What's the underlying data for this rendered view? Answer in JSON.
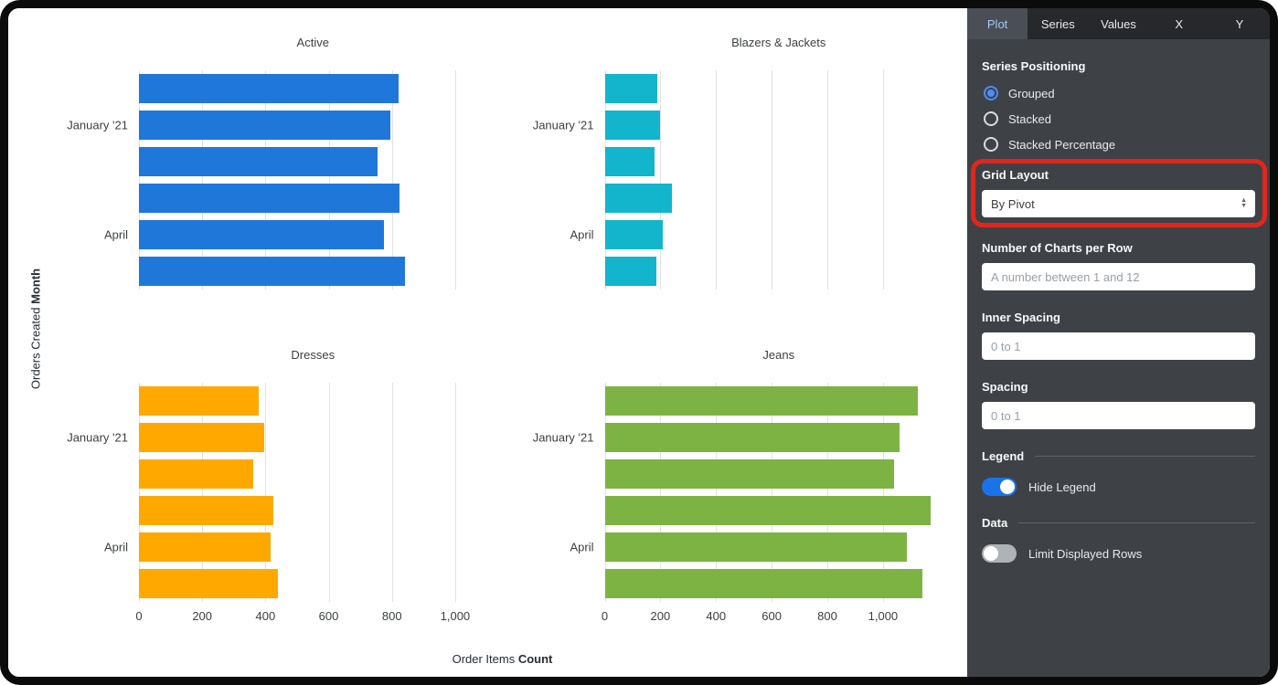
{
  "chart_data": {
    "type": "bar",
    "orientation": "horizontal",
    "grid": true,
    "legend_position": "hidden",
    "xlabel": "Order Items Count",
    "ylabel": "Orders Created Month",
    "xlabel_parts": {
      "normal": "Order Items ",
      "bold": "Count"
    },
    "ylabel_parts": {
      "normal": "Orders Created ",
      "bold": "Month"
    },
    "x_ticks": [
      0,
      200,
      400,
      600,
      800,
      1000
    ],
    "x_tick_labels": [
      "0",
      "200",
      "400",
      "600",
      "800",
      "1,000"
    ],
    "row_labels": [
      {
        "index": 1,
        "label": "January '21"
      },
      {
        "index": 4,
        "label": "April"
      }
    ],
    "charts": [
      {
        "title": "Active",
        "color": "#1f77d9",
        "xmax": 1100,
        "values": [
          820,
          795,
          755,
          825,
          775,
          840
        ]
      },
      {
        "title": "Blazers & Jackets",
        "color": "#12b5cb",
        "xmax": 1250,
        "values": [
          190,
          200,
          180,
          240,
          210,
          185
        ]
      },
      {
        "title": "Dresses",
        "color": "#ffa800",
        "xmax": 1100,
        "values": [
          380,
          395,
          360,
          425,
          415,
          440
        ]
      },
      {
        "title": "Jeans",
        "color": "#7cb342",
        "xmax": 1250,
        "values": [
          1125,
          1060,
          1040,
          1170,
          1085,
          1140
        ]
      }
    ]
  },
  "panel": {
    "tabs": [
      {
        "label": "Plot",
        "active": true
      },
      {
        "label": "Series",
        "active": false
      },
      {
        "label": "Values",
        "active": false
      },
      {
        "label": "X",
        "active": false
      },
      {
        "label": "Y",
        "active": false
      }
    ],
    "series_positioning": {
      "label": "Series Positioning",
      "options": [
        {
          "label": "Grouped",
          "selected": true
        },
        {
          "label": "Stacked",
          "selected": false
        },
        {
          "label": "Stacked Percentage",
          "selected": false
        }
      ]
    },
    "grid_layout": {
      "label": "Grid Layout",
      "value": "By Pivot"
    },
    "charts_per_row": {
      "label": "Number of Charts per Row",
      "placeholder": "A number between 1 and 12",
      "value": ""
    },
    "inner_spacing": {
      "label": "Inner Spacing",
      "placeholder": "0 to 1",
      "value": ""
    },
    "spacing": {
      "label": "Spacing",
      "placeholder": "0 to 1",
      "value": ""
    },
    "legend": {
      "section": "Legend",
      "toggle_label": "Hide Legend",
      "on": true
    },
    "data_section": {
      "section": "Data",
      "toggle_label": "Limit Displayed Rows",
      "on": false
    },
    "annotation_color": "#e0261d",
    "accent_color": "#1a73e8"
  }
}
